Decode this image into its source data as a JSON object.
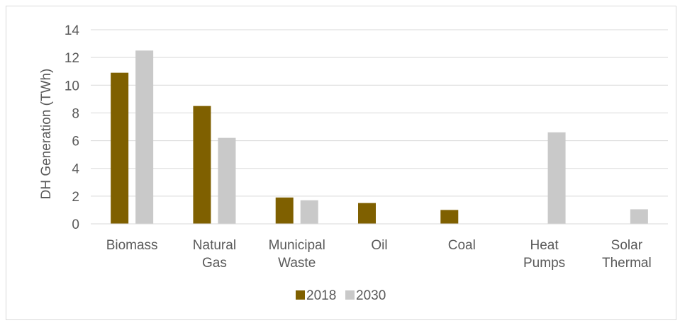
{
  "chart_data": {
    "type": "bar",
    "title": "",
    "xlabel": "",
    "ylabel": "DH Generation (TWh)",
    "ylim": [
      0,
      14
    ],
    "yticks": [
      0,
      2,
      4,
      6,
      8,
      10,
      12,
      14
    ],
    "grid": true,
    "legend_position": "bottom",
    "categories": [
      [
        "Biomass"
      ],
      [
        "Natural",
        "Gas"
      ],
      [
        "Municipal",
        "Waste"
      ],
      [
        "Oil"
      ],
      [
        "Coal"
      ],
      [
        "Heat",
        "Pumps"
      ],
      [
        "Solar",
        "Thermal"
      ]
    ],
    "series": [
      {
        "name": "2018",
        "color": "#7f6000",
        "values": [
          10.9,
          8.5,
          1.9,
          1.5,
          1.0,
          0,
          0
        ]
      },
      {
        "name": "2030",
        "color": "#c9c9c9",
        "values": [
          12.5,
          6.2,
          1.7,
          0,
          0,
          6.6,
          1.05
        ]
      }
    ]
  }
}
